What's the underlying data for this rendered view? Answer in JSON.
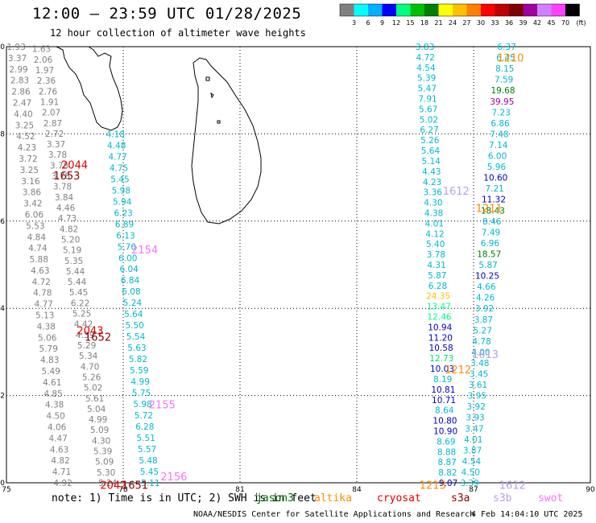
{
  "title": "12:00 — 23:59 UTC 01/28/2025",
  "subtitle": "12 hour collection of altimeter wave heights",
  "color_scale": {
    "unit": "(ft)",
    "ticks": [
      "3",
      "6",
      "9",
      "12",
      "15",
      "18",
      "21",
      "24",
      "27",
      "30",
      "33",
      "36",
      "39",
      "42",
      "45",
      "70"
    ],
    "colors": [
      "#808080",
      "#00ffff",
      "#00b0ff",
      "#0000ff",
      "#00ff80",
      "#00c000",
      "#008000",
      "#ffff00",
      "#ffc000",
      "#ff8000",
      "#ff0000",
      "#c00000",
      "#800000",
      "#a000a0",
      "#d080ff",
      "#ff40ff",
      "#000000"
    ]
  },
  "axes": {
    "x_ticks": [
      "75",
      "78",
      "81",
      "84",
      "87",
      "90"
    ],
    "y_ticks": [
      "0",
      "2",
      "4",
      "6",
      "8",
      "10"
    ]
  },
  "footnote": {
    "prefix": "note: 1) Time is in UTC; 2) SWH is in feet",
    "satellites": [
      {
        "name": "jason3",
        "color": "#007000"
      },
      {
        "name": "altika",
        "color": "#ff8c00"
      },
      {
        "name": "cryosat",
        "color": "#e00000"
      },
      {
        "name": "s3a",
        "color": "#8b0000"
      },
      {
        "name": "s3b",
        "color": "#b8a0e0"
      },
      {
        "name": "swot",
        "color": "#ff70ff"
      }
    ]
  },
  "credit": "NOAA/NESDIS Center for Satellite Applications and Research",
  "timestamp": "4 Feb 14:04:10 UTC 2025",
  "time_labels": [
    {
      "text": "2044",
      "lon": 76.75,
      "lat": 7.3,
      "color": "#e00000"
    },
    {
      "text": "1653",
      "lon": 76.55,
      "lat": 7.05,
      "color": "#8b0000"
    },
    {
      "text": "2154",
      "lon": 78.55,
      "lat": 5.35,
      "color": "#ff70ff"
    },
    {
      "text": "2043",
      "lon": 77.15,
      "lat": 3.5,
      "color": "#e00000"
    },
    {
      "text": "1652",
      "lon": 77.35,
      "lat": 3.35,
      "color": "#8b0000"
    },
    {
      "text": "2155",
      "lon": 79.0,
      "lat": 1.8,
      "color": "#ff70ff"
    },
    {
      "text": "2156",
      "lon": 79.3,
      "lat": 0.15,
      "color": "#ff70ff"
    },
    {
      "text": "2042",
      "lon": 77.75,
      "lat": -0.05,
      "color": "#e00000"
    },
    {
      "text": "1651",
      "lon": 78.3,
      "lat": -0.05,
      "color": "#8b0000"
    },
    {
      "text": "1210",
      "lon": 87.95,
      "lat": 9.75,
      "color": "#ff8c00"
    },
    {
      "text": "1211",
      "lon": 87.4,
      "lat": 6.3,
      "color": "#ff8c00"
    },
    {
      "text": "1612",
      "lon": 86.55,
      "lat": 6.7,
      "color": "#b8a0e0"
    },
    {
      "text": "1613",
      "lon": 87.3,
      "lat": 2.95,
      "color": "#b8a0e0"
    },
    {
      "text": "1212",
      "lon": 86.6,
      "lat": 2.6,
      "color": "#ff8c00"
    },
    {
      "text": "1213",
      "lon": 85.95,
      "lat": -0.05,
      "color": "#ff8c00"
    },
    {
      "text": "1612",
      "lon": 88.0,
      "lat": -0.05,
      "color": "#b8a0e0"
    }
  ],
  "tracks": [
    {
      "satellite": "s3a",
      "lon_start": 75.25,
      "lat_start": 10.0,
      "lon_end": 76.45,
      "lat_end": 0.0,
      "color": "#808080",
      "values": [
        "1.93",
        "3.37",
        "2.99",
        "2.83",
        "2.86",
        "2.47",
        "4.40",
        "3.25",
        "4.52",
        "4.23",
        "3.72",
        "3.25",
        "3.16",
        "3.86",
        "3.42",
        "6.06",
        "5.53",
        "4.84",
        "4.74",
        "5.88",
        "4.63",
        "4.72",
        "4.78",
        "4.77",
        "5.13",
        "4.38",
        "5.06",
        "5.79",
        "4.83",
        "5.49",
        "4.61",
        "4.85",
        "4.38",
        "4.50",
        "4.06",
        "4.47",
        "4.63",
        "4.82",
        "4.71",
        "4.92"
      ]
    },
    {
      "satellite": "s3a",
      "lon_start": 75.9,
      "lat_start": 9.95,
      "lon_end": 77.6,
      "lat_end": 0.0,
      "color": "#808080",
      "values": [
        "1.63",
        "2.06",
        "1.97",
        "2.36",
        "2.76",
        "1.91",
        "2.07",
        "2.87",
        "2.72",
        "3.37",
        "3.78",
        "3.78",
        "3.78",
        "3.78",
        "3.84",
        "4.46",
        "4.73",
        "4.82",
        "5.20",
        "5.19",
        "5.35",
        "5.44",
        "5.44",
        "5.45",
        "6.22",
        "5.25",
        "4.42",
        "4.39",
        "5.29",
        "5.34",
        "4.70",
        "5.26",
        "5.02",
        "5.61",
        "5.04",
        "4.99",
        "5.09",
        "4.30",
        "5.39",
        "5.09",
        "5.30",
        "5.24"
      ]
    },
    {
      "satellite": "swot",
      "lon_start": 77.8,
      "lat_start": 8.0,
      "lon_end": 78.7,
      "lat_end": 0.0,
      "color": "#00b8d0",
      "values": [
        "4.18",
        "4.48",
        "4.77",
        "4.75",
        "5.45",
        "5.98",
        "5.94",
        "6.23",
        "6.89",
        "6.13",
        "5.70",
        "6.00",
        "6.04",
        "6.84",
        "6.08",
        "5.24",
        "5.64",
        "5.50",
        "5.54",
        "5.63",
        "5.82",
        "5.59",
        "4.99",
        "5.75",
        "5.98",
        "5.72",
        "6.28",
        "5.51",
        "5.57",
        "5.48",
        "5.45",
        "5.11"
      ]
    },
    {
      "satellite": "altika",
      "lon_start": 85.75,
      "lat_start": 10.0,
      "lon_end": 86.35,
      "lat_end": 0.0,
      "values": [
        {
          "v": "3.83",
          "c": "#00b8d0"
        },
        {
          "v": "4.72",
          "c": "#00b8d0"
        },
        {
          "v": "4.54",
          "c": "#00b8d0"
        },
        {
          "v": "5.39",
          "c": "#00b8d0"
        },
        {
          "v": "5.47",
          "c": "#00b8d0"
        },
        {
          "v": "7.91",
          "c": "#00b8d0"
        },
        {
          "v": "5.67",
          "c": "#00b8d0"
        },
        {
          "v": "5.02",
          "c": "#00b8d0"
        },
        {
          "v": "6.27",
          "c": "#00b8d0"
        },
        {
          "v": "5.26",
          "c": "#00b8d0"
        },
        {
          "v": "5.64",
          "c": "#00b8d0"
        },
        {
          "v": "5.14",
          "c": "#00b8d0"
        },
        {
          "v": "4.43",
          "c": "#00b8d0"
        },
        {
          "v": "4.23",
          "c": "#00b8d0"
        },
        {
          "v": "3.36",
          "c": "#00b8d0"
        },
        {
          "v": "4.30",
          "c": "#00b8d0"
        },
        {
          "v": "4.38",
          "c": "#00b8d0"
        },
        {
          "v": "4.01",
          "c": "#00b8d0"
        },
        {
          "v": "4.12",
          "c": "#00b8d0"
        },
        {
          "v": "5.40",
          "c": "#00b8d0"
        },
        {
          "v": "3.78",
          "c": "#00b8d0"
        },
        {
          "v": "4.31",
          "c": "#00b8d0"
        },
        {
          "v": "5.87",
          "c": "#00b8d0"
        },
        {
          "v": "6.28",
          "c": "#00b8d0"
        },
        {
          "v": "24.35",
          "c": "#ffc000"
        },
        {
          "v": "13.47",
          "c": "#00ff80"
        },
        {
          "v": "12.46",
          "c": "#00ff80"
        },
        {
          "v": "10.94",
          "c": "#0000c0"
        },
        {
          "v": "11.20",
          "c": "#0000c0"
        },
        {
          "v": "10.58",
          "c": "#0000c0"
        },
        {
          "v": "12.73",
          "c": "#00e070"
        },
        {
          "v": "10.03",
          "c": "#0000c0"
        },
        {
          "v": "8.19",
          "c": "#00b8d0"
        },
        {
          "v": "10.81",
          "c": "#0000c0"
        },
        {
          "v": "10.71",
          "c": "#0000c0"
        },
        {
          "v": "8.64",
          "c": "#00b8d0"
        },
        {
          "v": "10.80",
          "c": "#0000c0"
        },
        {
          "v": "10.90",
          "c": "#0000c0"
        },
        {
          "v": "8.69",
          "c": "#00b8d0"
        },
        {
          "v": "8.88",
          "c": "#00b8d0"
        },
        {
          "v": "8.87",
          "c": "#00b8d0"
        },
        {
          "v": "8.82",
          "c": "#00b8d0"
        },
        {
          "v": "9.07",
          "c": "#0000c0"
        }
      ]
    },
    {
      "satellite": "s3b",
      "lon_start": 87.85,
      "lat_start": 10.0,
      "lon_end": 86.9,
      "lat_end": 0.0,
      "values": [
        {
          "v": "6.37",
          "c": "#00b8d0"
        },
        {
          "v": "6.45",
          "c": "#00b8d0"
        },
        {
          "v": "8.15",
          "c": "#00b8d0"
        },
        {
          "v": "7.59",
          "c": "#00b8d0"
        },
        {
          "v": "19.68",
          "c": "#008000"
        },
        {
          "v": "39.95",
          "c": "#a000a0"
        },
        {
          "v": "7.23",
          "c": "#00b8d0"
        },
        {
          "v": "6.86",
          "c": "#00b8d0"
        },
        {
          "v": "7.48",
          "c": "#00b8d0"
        },
        {
          "v": "7.14",
          "c": "#00b8d0"
        },
        {
          "v": "6.00",
          "c": "#00b8d0"
        },
        {
          "v": "5.96",
          "c": "#00b8d0"
        },
        {
          "v": "10.60",
          "c": "#0000c0"
        },
        {
          "v": "7.21",
          "c": "#00b8d0"
        },
        {
          "v": "11.32",
          "c": "#0000c0"
        },
        {
          "v": "18.43",
          "c": "#008000"
        },
        {
          "v": "8.46",
          "c": "#00b8d0"
        },
        {
          "v": "7.49",
          "c": "#00b8d0"
        },
        {
          "v": "6.96",
          "c": "#00b8d0"
        },
        {
          "v": "18.57",
          "c": "#008000"
        },
        {
          "v": "5.87",
          "c": "#00b8d0"
        },
        {
          "v": "10.25",
          "c": "#0000c0"
        },
        {
          "v": "4.66",
          "c": "#00b8d0"
        },
        {
          "v": "4.26",
          "c": "#00b8d0"
        },
        {
          "v": "3.92",
          "c": "#00b8d0"
        },
        {
          "v": "3.87",
          "c": "#00b8d0"
        },
        {
          "v": "5.27",
          "c": "#00b8d0"
        },
        {
          "v": "4.78",
          "c": "#00b8d0"
        },
        {
          "v": "4.00",
          "c": "#00b8d0"
        },
        {
          "v": "3.48",
          "c": "#00b8d0"
        },
        {
          "v": "3.45",
          "c": "#00b8d0"
        },
        {
          "v": "3.61",
          "c": "#00b8d0"
        },
        {
          "v": "3.95",
          "c": "#00b8d0"
        },
        {
          "v": "3.92",
          "c": "#00b8d0"
        },
        {
          "v": "3.93",
          "c": "#00b8d0"
        },
        {
          "v": "3.47",
          "c": "#00b8d0"
        },
        {
          "v": "4.01",
          "c": "#00b8d0"
        },
        {
          "v": "3.87",
          "c": "#00b8d0"
        },
        {
          "v": "4.54",
          "c": "#00b8d0"
        },
        {
          "v": "4.50",
          "c": "#00b8d0"
        },
        {
          "v": "3.39",
          "c": "#00b8d0"
        }
      ]
    }
  ]
}
